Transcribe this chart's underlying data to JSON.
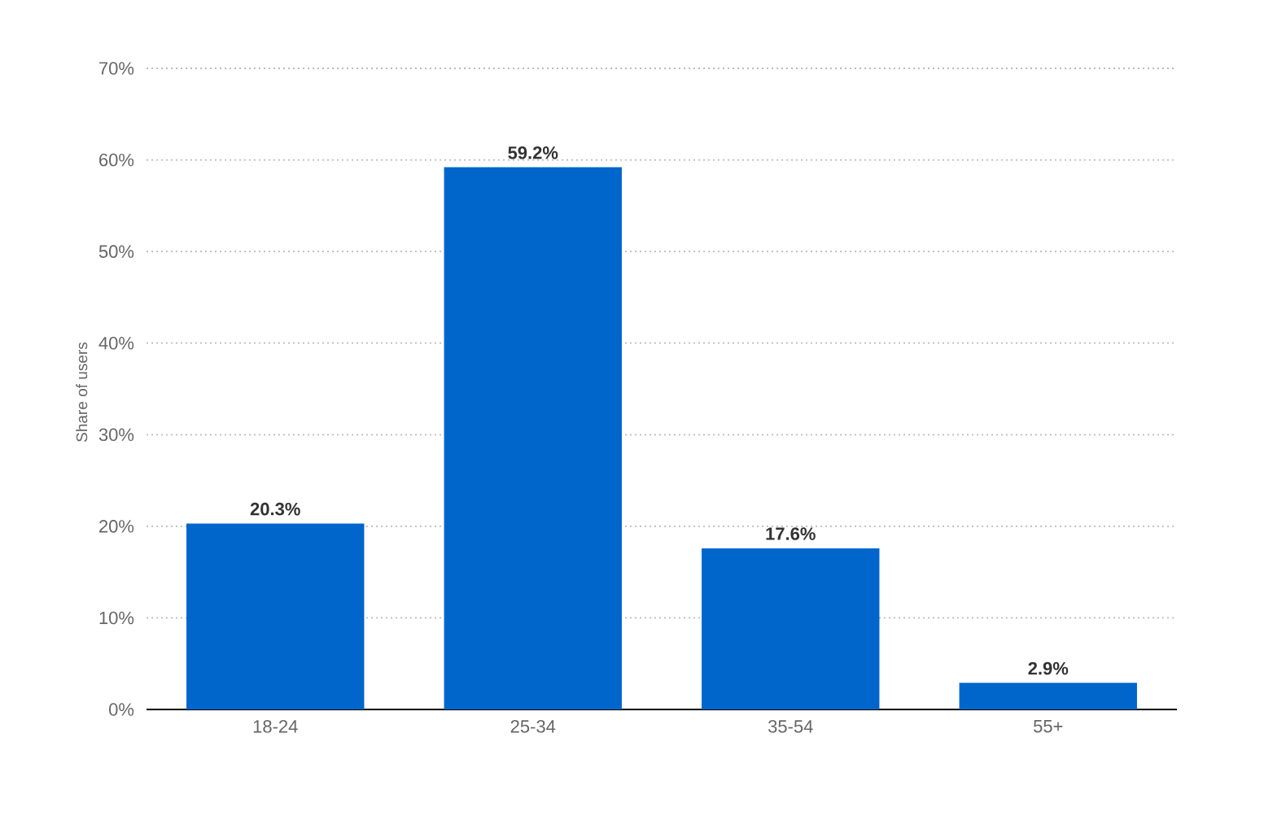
{
  "chart_data": {
    "type": "bar",
    "ylabel": "Share of users",
    "categories": [
      "18-24",
      "25-34",
      "35-54",
      "55+"
    ],
    "values": [
      20.3,
      59.2,
      17.6,
      2.9
    ],
    "value_labels": [
      "20.3%",
      "59.2%",
      "17.6%",
      "2.9%"
    ],
    "color": "#0066cc",
    "ylim": [
      0,
      70
    ],
    "yticks": [
      {
        "value": 0,
        "label": "0%"
      },
      {
        "value": 10,
        "label": "10%"
      },
      {
        "value": 20,
        "label": "20%"
      },
      {
        "value": 30,
        "label": "30%"
      },
      {
        "value": 40,
        "label": "40%"
      },
      {
        "value": 50,
        "label": "50%"
      },
      {
        "value": 60,
        "label": "60%"
      },
      {
        "value": 70,
        "label": "70%"
      }
    ],
    "grid": "y"
  }
}
